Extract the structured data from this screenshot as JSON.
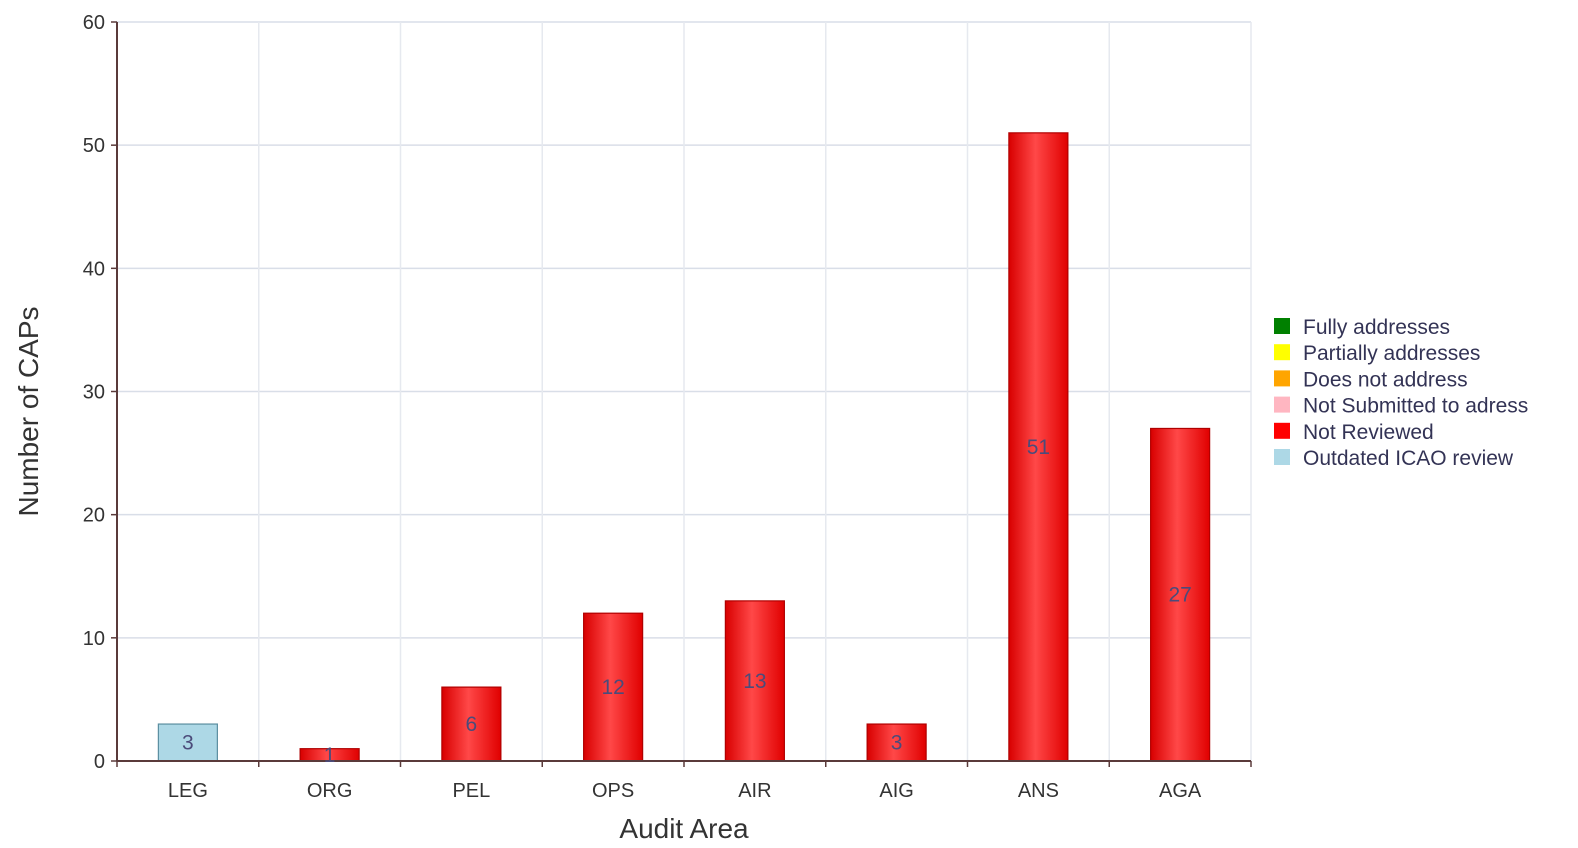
{
  "chart_data": {
    "type": "bar",
    "categories": [
      "LEG",
      "ORG",
      "PEL",
      "OPS",
      "AIR",
      "AIG",
      "ANS",
      "AGA"
    ],
    "values": [
      3,
      1,
      6,
      12,
      13,
      3,
      51,
      27
    ],
    "bar_status": [
      "Outdated ICAO review",
      "Not Reviewed",
      "Not Reviewed",
      "Not Reviewed",
      "Not Reviewed",
      "Not Reviewed",
      "Not Reviewed",
      "Not Reviewed"
    ],
    "data_labels": [
      "3",
      "1",
      "6",
      "12",
      "13",
      "3",
      "51",
      "27"
    ],
    "title": "",
    "xlabel": "Audit Area",
    "ylabel": "Number of CAPs",
    "ylim": [
      0,
      60
    ],
    "yticks": [
      0,
      10,
      20,
      30,
      40,
      50,
      60
    ],
    "grid": true,
    "legend_position": "right",
    "legend": [
      {
        "label": "Fully addresses",
        "color": "#008000"
      },
      {
        "label": "Partially addresses",
        "color": "#ffff00"
      },
      {
        "label": "Does not address",
        "color": "#ffa500"
      },
      {
        "label": "Not Submitted to adress",
        "color": "#ffb6c1"
      },
      {
        "label": "Not Reviewed",
        "color": "#ff0000"
      },
      {
        "label": "Outdated ICAO review",
        "color": "#add8e6"
      }
    ]
  }
}
